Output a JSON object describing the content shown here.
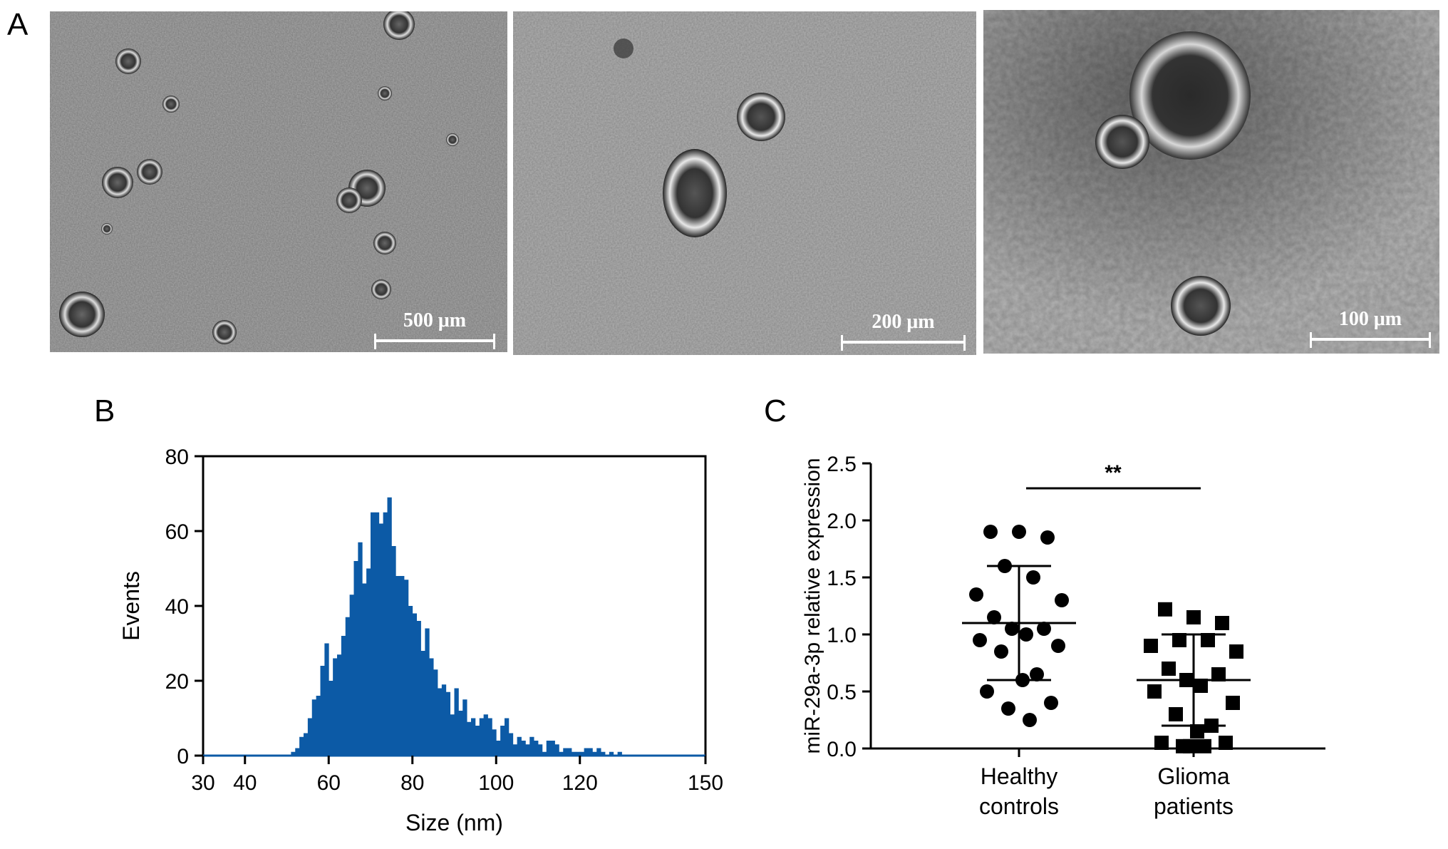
{
  "panels": {
    "a": {
      "letter": "A",
      "images": [
        {
          "scale_label": "500 μm"
        },
        {
          "scale_label": "200 μm"
        },
        {
          "scale_label": "100 μm"
        }
      ]
    },
    "b": {
      "letter": "B"
    },
    "c": {
      "letter": "C"
    }
  },
  "chart_data": [
    {
      "type": "bar",
      "panel": "B",
      "xlabel": "Size (nm)",
      "ylabel": "Events",
      "xlim": [
        30,
        150
      ],
      "ylim": [
        0,
        80
      ],
      "x_ticks": [
        30,
        40,
        60,
        80,
        100,
        120,
        150
      ],
      "y_ticks": [
        0,
        20,
        40,
        60,
        80
      ],
      "bin_width": 1,
      "bins_start": 30,
      "values": [
        0,
        0,
        0,
        0,
        0,
        0,
        0,
        0,
        0,
        0,
        0,
        0,
        0,
        0,
        0,
        0,
        0,
        0,
        0,
        0,
        0,
        1,
        2,
        5,
        6,
        10,
        15,
        16,
        24,
        30,
        20,
        26,
        27,
        32,
        37,
        43,
        52,
        57,
        46,
        50,
        65,
        65,
        62,
        65,
        69,
        56,
        48,
        48,
        47,
        40,
        38,
        36,
        28,
        34,
        26,
        23,
        18,
        19,
        17,
        11,
        18,
        12,
        15,
        9,
        10,
        8,
        10,
        11,
        10,
        7,
        4,
        8,
        10,
        6,
        3,
        5,
        4,
        3,
        5,
        4,
        3,
        1,
        4,
        4,
        3,
        1,
        2,
        2,
        1,
        1,
        1,
        2,
        2,
        1,
        2,
        1,
        0,
        1,
        0,
        1,
        0,
        0,
        0,
        0,
        0,
        0,
        0,
        0,
        0,
        0,
        0,
        0,
        0,
        0,
        0,
        0,
        0,
        0,
        0,
        0,
        0
      ],
      "color": "#0c5aa6"
    },
    {
      "type": "scatter",
      "panel": "C",
      "ylabel": "miR-29a-3p relative expression",
      "ylim": [
        0,
        2.5
      ],
      "y_ticks": [
        "0.0",
        "0.5",
        "1.0",
        "1.5",
        "2.0",
        "2.5"
      ],
      "categories": [
        {
          "line1": "Healthy",
          "line2": "controls"
        },
        {
          "line1": "Glioma",
          "line2": "patients"
        }
      ],
      "significance": "**",
      "series": [
        {
          "marker": "circle",
          "mean": 1.1,
          "sd_low": 0.6,
          "sd_high": 1.6,
          "values": [
            1.9,
            1.9,
            1.85,
            1.6,
            1.5,
            1.35,
            1.3,
            1.15,
            1.05,
            1.05,
            1.0,
            0.95,
            0.9,
            0.85,
            0.65,
            0.6,
            0.5,
            0.4,
            0.35,
            0.25
          ]
        },
        {
          "marker": "square",
          "mean": 0.6,
          "sd_low": 0.2,
          "sd_high": 1.0,
          "values": [
            1.22,
            1.15,
            1.1,
            0.95,
            0.95,
            0.9,
            0.85,
            0.7,
            0.65,
            0.6,
            0.55,
            0.5,
            0.4,
            0.3,
            0.2,
            0.15,
            0.05,
            0.05,
            0.02,
            0.02,
            0.02
          ]
        }
      ]
    }
  ]
}
